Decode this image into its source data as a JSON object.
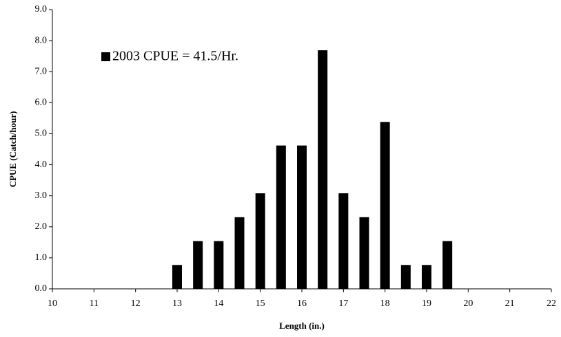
{
  "chart_data": {
    "type": "bar",
    "x_label": "Length (in.)",
    "y_label": "CPUE (Catch/hour)",
    "x": [
      13,
      13.5,
      14,
      14.5,
      15,
      15.5,
      16,
      16.5,
      17,
      17.5,
      18,
      18.5,
      19,
      19.5
    ],
    "series": [
      {
        "name": "2003 CPUE = 41.5/Hr.",
        "color": "#000000",
        "values": [
          0.77,
          1.54,
          1.54,
          2.31,
          3.08,
          4.62,
          4.62,
          7.69,
          3.08,
          2.31,
          5.38,
          0.77,
          0.77,
          1.54
        ]
      }
    ],
    "xlim": [
      10,
      22
    ],
    "xticks": [
      10,
      11,
      12,
      13,
      14,
      15,
      16,
      17,
      18,
      19,
      20,
      21,
      22
    ],
    "ylim": [
      0,
      9
    ],
    "yticks": [
      {
        "value": 0,
        "label": "0.0"
      },
      {
        "value": 1,
        "label": "1.0"
      },
      {
        "value": 2,
        "label": "2.0"
      },
      {
        "value": 3,
        "label": "3.0"
      },
      {
        "value": 4,
        "label": "4.0"
      },
      {
        "value": 5,
        "label": "5.0"
      },
      {
        "value": 6,
        "label": "6.0"
      },
      {
        "value": 7,
        "label": "7.0"
      },
      {
        "value": 8,
        "label": "8.0"
      },
      {
        "value": 9,
        "label": "9.0"
      }
    ],
    "grid": false,
    "legend": "top-left"
  }
}
